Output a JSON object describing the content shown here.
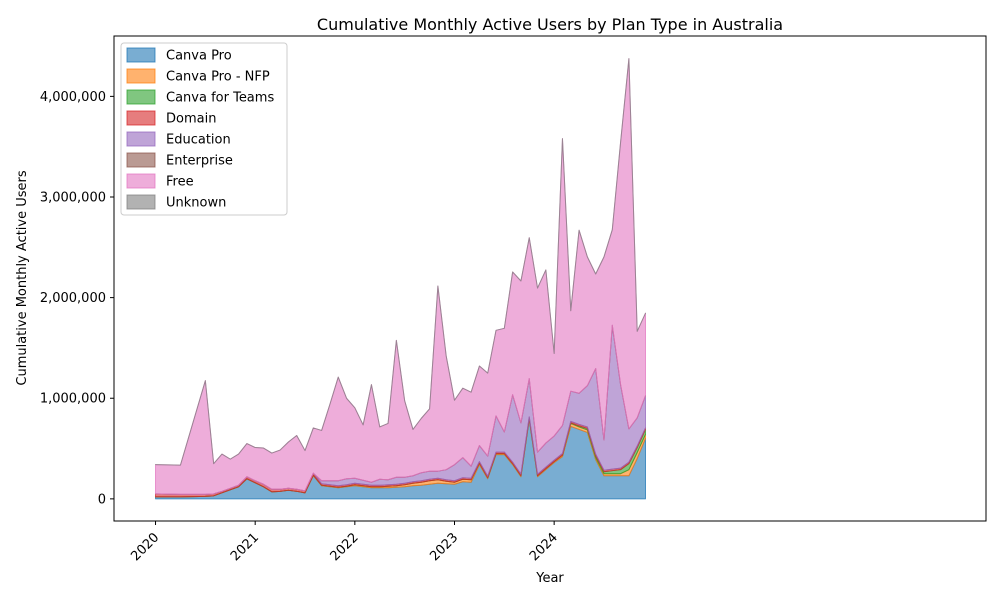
{
  "chart_data": {
    "type": "area",
    "stacked": true,
    "title": "Cumulative Monthly Active Users by Plan Type in Australia",
    "xlabel": "Year",
    "ylabel": "Cumulative Monthly Active Users",
    "x_tick_labels": [
      "2020",
      "2021",
      "2022",
      "2023",
      "2024"
    ],
    "y_tick_labels": [
      "0",
      "1,000,000",
      "2,000,000",
      "3,000,000",
      "4,000,000"
    ],
    "y_ticks": [
      0,
      1000000,
      2000000,
      3000000,
      4000000
    ],
    "ylim": [
      -220000,
      4600000
    ],
    "xlim": [
      -5,
      100
    ],
    "grid": false,
    "legend_position": "top-left",
    "x_months": [
      0,
      3,
      6,
      7,
      8,
      9,
      10,
      11,
      12,
      13,
      14,
      15,
      16,
      17,
      18,
      19,
      20,
      21,
      22,
      23,
      24,
      25,
      26,
      27,
      28,
      29,
      30,
      31,
      32,
      33,
      34,
      35,
      36,
      37,
      38,
      39,
      40,
      41,
      42,
      43,
      44,
      45,
      46,
      47,
      48,
      49,
      50,
      51,
      52,
      53,
      54,
      55,
      56,
      57,
      58,
      59
    ],
    "series": [
      {
        "name": "Canva Pro",
        "color": "#1f77b4",
        "values": [
          20000,
          20000,
          25000,
          30000,
          60000,
          90000,
          120000,
          200000,
          160000,
          120000,
          70000,
          75000,
          85000,
          75000,
          60000,
          230000,
          130000,
          120000,
          110000,
          120000,
          130000,
          120000,
          110000,
          110000,
          110000,
          115000,
          120000,
          130000,
          135000,
          145000,
          155000,
          150000,
          145000,
          170000,
          165000,
          340000,
          200000,
          440000,
          440000,
          340000,
          220000,
          790000,
          220000,
          290000,
          360000,
          420000,
          720000,
          690000,
          660000,
          390000,
          230000,
          230000,
          230000,
          230000,
          400000,
          600000
        ]
      },
      {
        "name": "Canva Pro - NFP",
        "color": "#ff7f0e",
        "values": [
          0,
          0,
          0,
          0,
          0,
          0,
          0,
          0,
          0,
          0,
          0,
          0,
          0,
          0,
          0,
          5000,
          5000,
          5000,
          5000,
          5000,
          10000,
          10000,
          10000,
          10000,
          15000,
          15000,
          20000,
          25000,
          30000,
          35000,
          35000,
          25000,
          20000,
          25000,
          25000,
          15000,
          10000,
          10000,
          10000,
          10000,
          10000,
          10000,
          10000,
          10000,
          10000,
          15000,
          30000,
          25000,
          25000,
          20000,
          20000,
          20000,
          20000,
          60000,
          60000,
          40000
        ]
      },
      {
        "name": "Canva for Teams",
        "color": "#2ca02c",
        "values": [
          0,
          0,
          0,
          0,
          0,
          0,
          0,
          0,
          0,
          0,
          0,
          0,
          0,
          0,
          0,
          0,
          0,
          0,
          0,
          0,
          0,
          0,
          0,
          0,
          0,
          0,
          0,
          0,
          0,
          0,
          0,
          0,
          0,
          0,
          0,
          0,
          0,
          0,
          0,
          0,
          0,
          0,
          0,
          0,
          0,
          0,
          5000,
          10000,
          15000,
          20000,
          20000,
          30000,
          40000,
          60000,
          50000,
          50000
        ]
      },
      {
        "name": "Domain",
        "color": "#d62728",
        "values": [
          30000,
          25000,
          20000,
          20000,
          15000,
          15000,
          15000,
          20000,
          20000,
          25000,
          25000,
          20000,
          20000,
          20000,
          20000,
          20000,
          15000,
          15000,
          15000,
          15000,
          15000,
          15000,
          15000,
          15000,
          15000,
          15000,
          15000,
          15000,
          15000,
          15000,
          15000,
          15000,
          15000,
          15000,
          15000,
          15000,
          15000,
          15000,
          15000,
          15000,
          15000,
          15000,
          15000,
          15000,
          15000,
          15000,
          15000,
          15000,
          15000,
          15000,
          15000,
          15000,
          15000,
          15000,
          15000,
          15000
        ]
      },
      {
        "name": "Education",
        "color": "#9467bd",
        "values": [
          0,
          0,
          0,
          0,
          0,
          0,
          0,
          0,
          0,
          0,
          0,
          0,
          0,
          0,
          0,
          0,
          30000,
          40000,
          50000,
          60000,
          50000,
          40000,
          30000,
          60000,
          50000,
          70000,
          60000,
          60000,
          80000,
          80000,
          70000,
          100000,
          160000,
          200000,
          120000,
          160000,
          200000,
          360000,
          200000,
          670000,
          510000,
          380000,
          220000,
          240000,
          240000,
          280000,
          300000,
          310000,
          410000,
          850000,
          300000,
          1430000,
          830000,
          330000,
          280000,
          320000
        ]
      },
      {
        "name": "Enterprise",
        "color": "#8c564b",
        "values": [
          0,
          0,
          0,
          0,
          0,
          0,
          0,
          0,
          0,
          0,
          0,
          0,
          0,
          0,
          0,
          0,
          0,
          0,
          0,
          0,
          0,
          0,
          0,
          0,
          0,
          0,
          0,
          0,
          0,
          0,
          0,
          0,
          0,
          0,
          0,
          0,
          0,
          0,
          0,
          0,
          0,
          0,
          0,
          0,
          0,
          0,
          0,
          0,
          0,
          0,
          0,
          0,
          0,
          0,
          0,
          0
        ]
      },
      {
        "name": "Free",
        "color": "#e377c2",
        "values": [
          290000,
          290000,
          1130000,
          300000,
          370000,
          290000,
          310000,
          330000,
          330000,
          360000,
          360000,
          390000,
          460000,
          535000,
          400000,
          450000,
          500000,
          760000,
          1030000,
          800000,
          700000,
          550000,
          970000,
          520000,
          560000,
          1360000,
          760000,
          460000,
          540000,
          620000,
          1840000,
          1130000,
          640000,
          690000,
          735000,
          790000,
          825000,
          850000,
          1030000,
          1220000,
          1410000,
          1400000,
          1630000,
          1720000,
          820000,
          2850000,
          800000,
          1620000,
          1280000,
          940000,
          1820000,
          950000,
          2410000,
          3680000,
          860000,
          820000
        ]
      },
      {
        "name": "Unknown",
        "color": "#7f7f7f",
        "values": [
          0,
          0,
          0,
          0,
          0,
          0,
          0,
          0,
          0,
          0,
          0,
          0,
          0,
          0,
          0,
          0,
          0,
          0,
          0,
          0,
          0,
          0,
          0,
          0,
          0,
          0,
          0,
          0,
          0,
          0,
          0,
          0,
          0,
          0,
          0,
          0,
          0,
          0,
          0,
          0,
          0,
          0,
          0,
          0,
          0,
          0,
          0,
          0,
          0,
          0,
          0,
          0,
          0,
          0,
          0,
          0
        ]
      }
    ]
  }
}
